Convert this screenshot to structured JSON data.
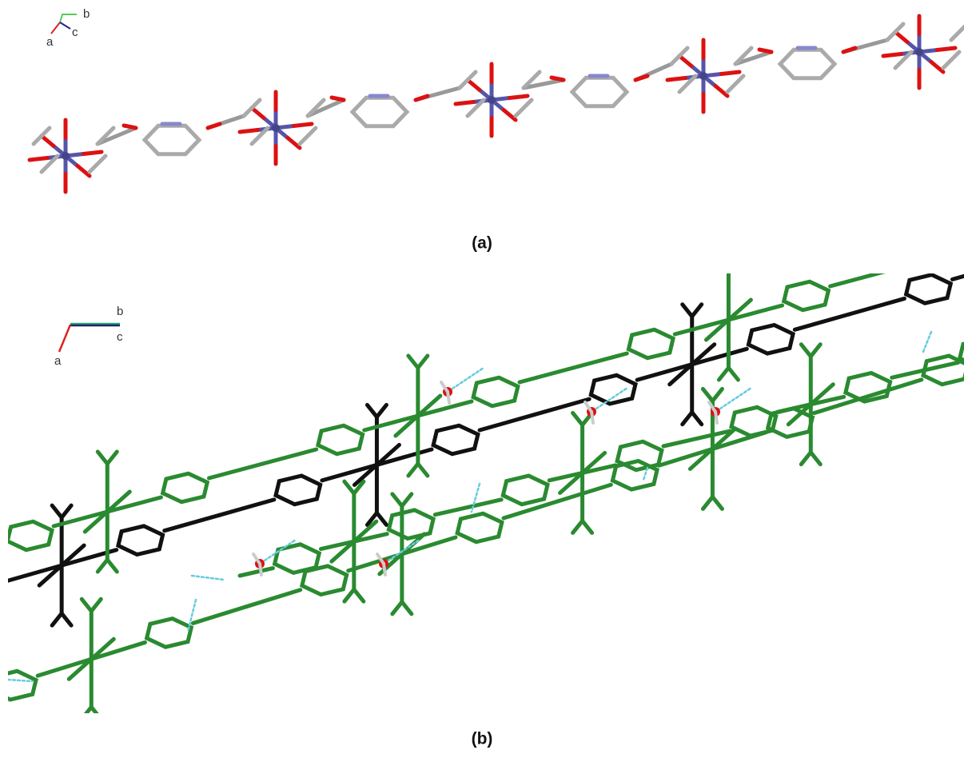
{
  "panel_a": {
    "axis_labels": {
      "b": "b",
      "a": "a",
      "c": "c"
    },
    "caption": "(a)"
  },
  "panel_b": {
    "axis_labels": {
      "b": "b",
      "c": "c",
      "a": "a"
    },
    "caption": "(b)"
  }
}
